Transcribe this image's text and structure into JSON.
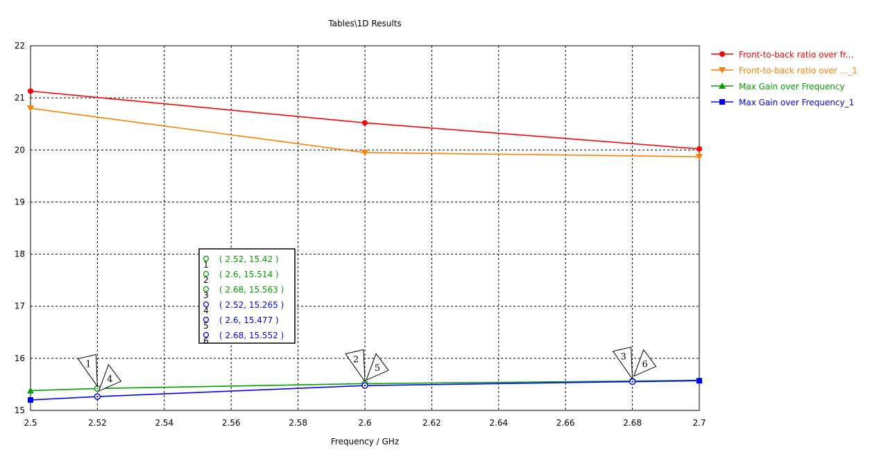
{
  "chart_data": {
    "type": "line",
    "title": "Tables\\1D Results",
    "xlabel": "Frequency / GHz",
    "ylabel": "",
    "xlim": [
      2.5,
      2.7
    ],
    "ylim": [
      15,
      22
    ],
    "xticks": [
      "2.5",
      "2.52",
      "2.54",
      "2.56",
      "2.58",
      "2.6",
      "2.62",
      "2.64",
      "2.66",
      "2.68",
      "2.7"
    ],
    "yticks": [
      "15",
      "16",
      "17",
      "18",
      "19",
      "20",
      "21",
      "22"
    ],
    "grid": true,
    "legend_position": "right",
    "series": [
      {
        "name": "Front-to-back ratio over fr...",
        "color": "#ff0000",
        "marker": "circle",
        "x": [
          2.5,
          2.6,
          2.7
        ],
        "y": [
          21.13,
          20.52,
          20.02
        ]
      },
      {
        "name": "Front-to-back ratio over ..._1",
        "color": "#ff8000",
        "marker": "triangle-down",
        "x": [
          2.5,
          2.6,
          2.7
        ],
        "y": [
          20.8,
          19.95,
          19.87
        ]
      },
      {
        "name": "Max Gain over Frequency",
        "color": "#00a000",
        "marker": "triangle-up",
        "x": [
          2.5,
          2.52,
          2.6,
          2.68,
          2.7
        ],
        "y": [
          15.38,
          15.42,
          15.514,
          15.563,
          15.58
        ]
      },
      {
        "name": "Max Gain over Frequency_1",
        "color": "#0000ff",
        "marker": "square",
        "x": [
          2.5,
          2.52,
          2.6,
          2.68,
          2.7
        ],
        "y": [
          15.2,
          15.265,
          15.477,
          15.552,
          15.57
        ]
      }
    ],
    "markers": [
      {
        "id": "1",
        "series": 2,
        "x": 2.52,
        "y": 15.42,
        "label": "( 2.52, 15.42 )",
        "side": "left"
      },
      {
        "id": "2",
        "series": 2,
        "x": 2.6,
        "y": 15.514,
        "label": "( 2.6, 15.514 )",
        "side": "left"
      },
      {
        "id": "3",
        "series": 2,
        "x": 2.68,
        "y": 15.563,
        "label": "( 2.68, 15.563 )",
        "side": "left"
      },
      {
        "id": "4",
        "series": 3,
        "x": 2.52,
        "y": 15.265,
        "label": "( 2.52, 15.265 )",
        "side": "right"
      },
      {
        "id": "5",
        "series": 3,
        "x": 2.6,
        "y": 15.477,
        "label": "( 2.6, 15.477 )",
        "side": "right"
      },
      {
        "id": "6",
        "series": 3,
        "x": 2.68,
        "y": 15.552,
        "label": "( 2.68, 15.552 )",
        "side": "right"
      }
    ]
  }
}
